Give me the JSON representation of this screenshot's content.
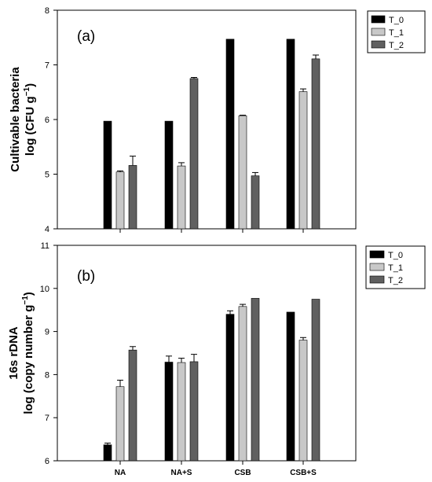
{
  "chart_data": [
    {
      "type": "bar",
      "panel_label": "(a)",
      "ylabel_line1": "Cultivable bacteria",
      "ylabel_line2_prefix": "log (CFU g",
      "ylabel_line2_sup": "−1",
      "ylabel_line2_suffix": ")",
      "ylim": [
        4,
        8
      ],
      "yticks": [
        "4",
        "5",
        "6",
        "7",
        "8"
      ],
      "categories": [
        "NA",
        "NA+S",
        "CSB",
        "CSB+S"
      ],
      "show_category_labels": false,
      "legend_position": "top-right",
      "grid": false,
      "series": [
        {
          "name": "T_0",
          "color": "#000000",
          "values": [
            5.97,
            5.97,
            7.47,
            7.47
          ],
          "errors": [
            0,
            0,
            0,
            0
          ]
        },
        {
          "name": "T_1",
          "color": "#c8c8c8",
          "values": [
            5.04,
            5.15,
            6.07,
            6.51
          ],
          "errors": [
            0.02,
            0.06,
            0.01,
            0.05
          ]
        },
        {
          "name": "T_2",
          "color": "#606060",
          "values": [
            5.16,
            6.75,
            4.97,
            7.11
          ],
          "errors": [
            0.17,
            0.02,
            0.06,
            0.07
          ]
        }
      ]
    },
    {
      "type": "bar",
      "panel_label": "(b)",
      "ylabel_line1": "16s rDNA",
      "ylabel_line2_prefix": "log (copy number g",
      "ylabel_line2_sup": "−1",
      "ylabel_line2_suffix": ")",
      "ylim": [
        6,
        11
      ],
      "yticks": [
        "6",
        "7",
        "8",
        "9",
        "10",
        "11"
      ],
      "categories": [
        "NA",
        "NA+S",
        "CSB",
        "CSB+S"
      ],
      "show_category_labels": true,
      "legend_position": "top-right",
      "grid": false,
      "series": [
        {
          "name": "T_0",
          "color": "#000000",
          "values": [
            6.37,
            8.29,
            9.4,
            9.45
          ],
          "errors": [
            0.04,
            0.14,
            0.08,
            0
          ]
        },
        {
          "name": "T_1",
          "color": "#c8c8c8",
          "values": [
            7.72,
            8.28,
            9.58,
            8.8
          ],
          "errors": [
            0.15,
            0.1,
            0.05,
            0.06
          ]
        },
        {
          "name": "T_2",
          "color": "#606060",
          "values": [
            8.57,
            8.3,
            9.77,
            9.75
          ],
          "errors": [
            0.08,
            0.17,
            0,
            0
          ]
        }
      ]
    }
  ]
}
